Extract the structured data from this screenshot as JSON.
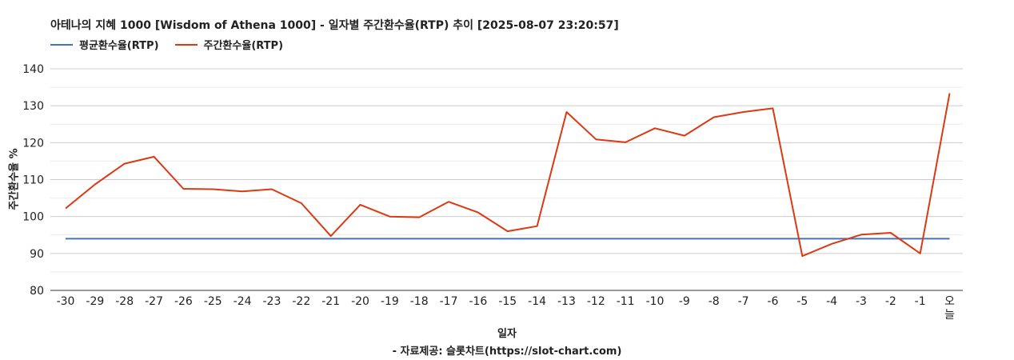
{
  "chart_data": {
    "type": "line",
    "title": "아테나의 지혜 1000 [Wisdom of Athena 1000] - 일자별 주간환수율(RTP) 추이 [2025-08-07 23:20:57]",
    "xlabel": "일자",
    "ylabel": "주간환수율 %",
    "source": "- 자료제공: 슬롯차트(https://slot-chart.com)",
    "categories": [
      "-30",
      "-29",
      "-28",
      "-27",
      "-26",
      "-25",
      "-24",
      "-23",
      "-22",
      "-21",
      "-20",
      "-19",
      "-18",
      "-17",
      "-16",
      "-15",
      "-14",
      "-13",
      "-12",
      "-11",
      "-10",
      "-9",
      "-8",
      "-7",
      "-6",
      "-5",
      "-4",
      "-3",
      "-2",
      "-1",
      "오늘"
    ],
    "ylim": [
      80,
      140
    ],
    "yticks": [
      80,
      90,
      100,
      110,
      120,
      130,
      140
    ],
    "grid": true,
    "legend_position": "top-left",
    "series": [
      {
        "name": "평균환수율(RTP)",
        "color": "#4472c4",
        "values": [
          94,
          94,
          94,
          94,
          94,
          94,
          94,
          94,
          94,
          94,
          94,
          94,
          94,
          94,
          94,
          94,
          94,
          94,
          94,
          94,
          94,
          94,
          94,
          94,
          94,
          94,
          94,
          94,
          94,
          94,
          94
        ]
      },
      {
        "name": "주간환수율(RTP)",
        "color": "#dc3912",
        "values": [
          102.2,
          108.7,
          114.3,
          116.2,
          107.5,
          107.4,
          106.8,
          107.4,
          103.6,
          94.7,
          103.2,
          100.0,
          99.8,
          104.0,
          101.1,
          96.0,
          97.4,
          128.3,
          120.9,
          120.1,
          123.9,
          121.9,
          126.9,
          128.3,
          129.3,
          89.3,
          92.6,
          95.1,
          95.6,
          90.0,
          133.4
        ]
      }
    ]
  }
}
